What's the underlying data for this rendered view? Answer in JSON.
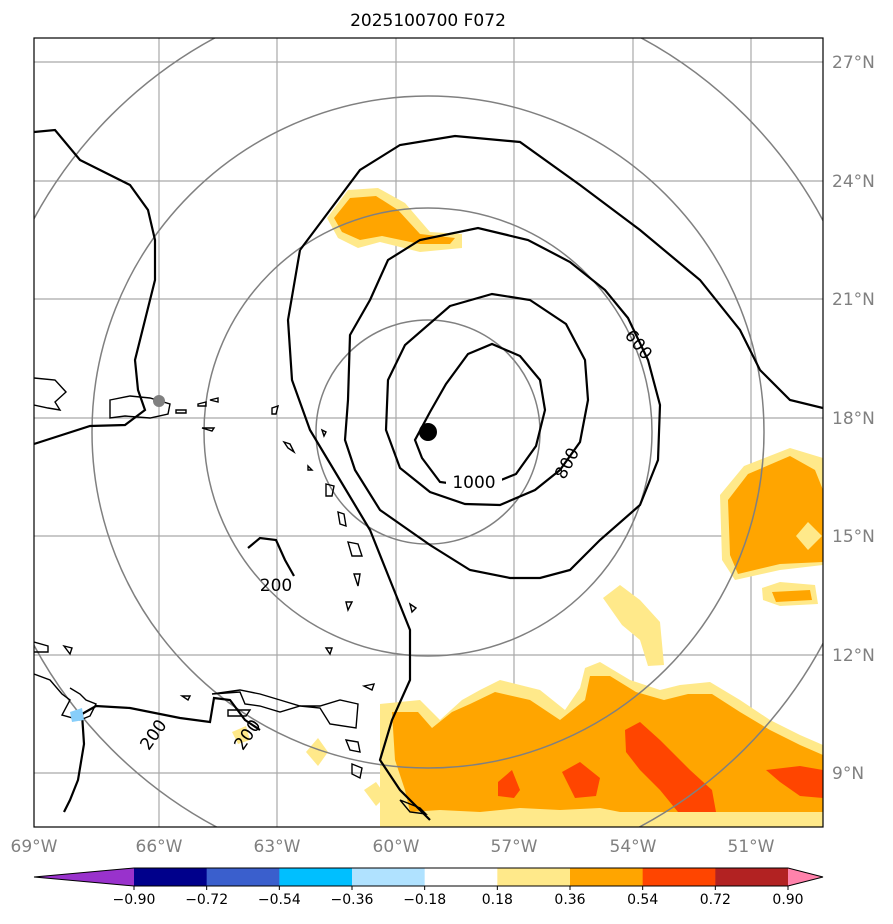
{
  "title": "2025100700 F072",
  "lon_labels": [
    "69°W",
    "66°W",
    "63°W",
    "60°W",
    "57°W",
    "54°W",
    "51°W"
  ],
  "lat_labels": [
    "27°N",
    "24°N",
    "21°N",
    "18°N",
    "15°N",
    "12°N",
    "9°N"
  ],
  "contour_labels": [
    "1000",
    "800",
    "600",
    "200",
    "200",
    "200"
  ],
  "storm_center": {
    "lon": "59.2°W",
    "lat": "17.6°N"
  },
  "colorbar": {
    "ticks": [
      "−0.90",
      "−0.72",
      "−0.54",
      "−0.36",
      "−0.18",
      "0.18",
      "0.36",
      "0.54",
      "0.72",
      "0.90"
    ],
    "colors": [
      "#9932cc",
      "#00008b",
      "#3a5fcd",
      "#00bfff",
      "#b0e2ff",
      "#ffffff",
      "#ffe98a",
      "#ffa500",
      "#ff4500",
      "#b22222",
      "#ff82ab"
    ]
  },
  "colors": {
    "shade_light": "#ffe98a",
    "shade_orange": "#ffa500",
    "shade_red": "#ff4500",
    "light_blue": "#87cefa",
    "grid": "#a9a9a9",
    "range_ring": "#808080"
  }
}
